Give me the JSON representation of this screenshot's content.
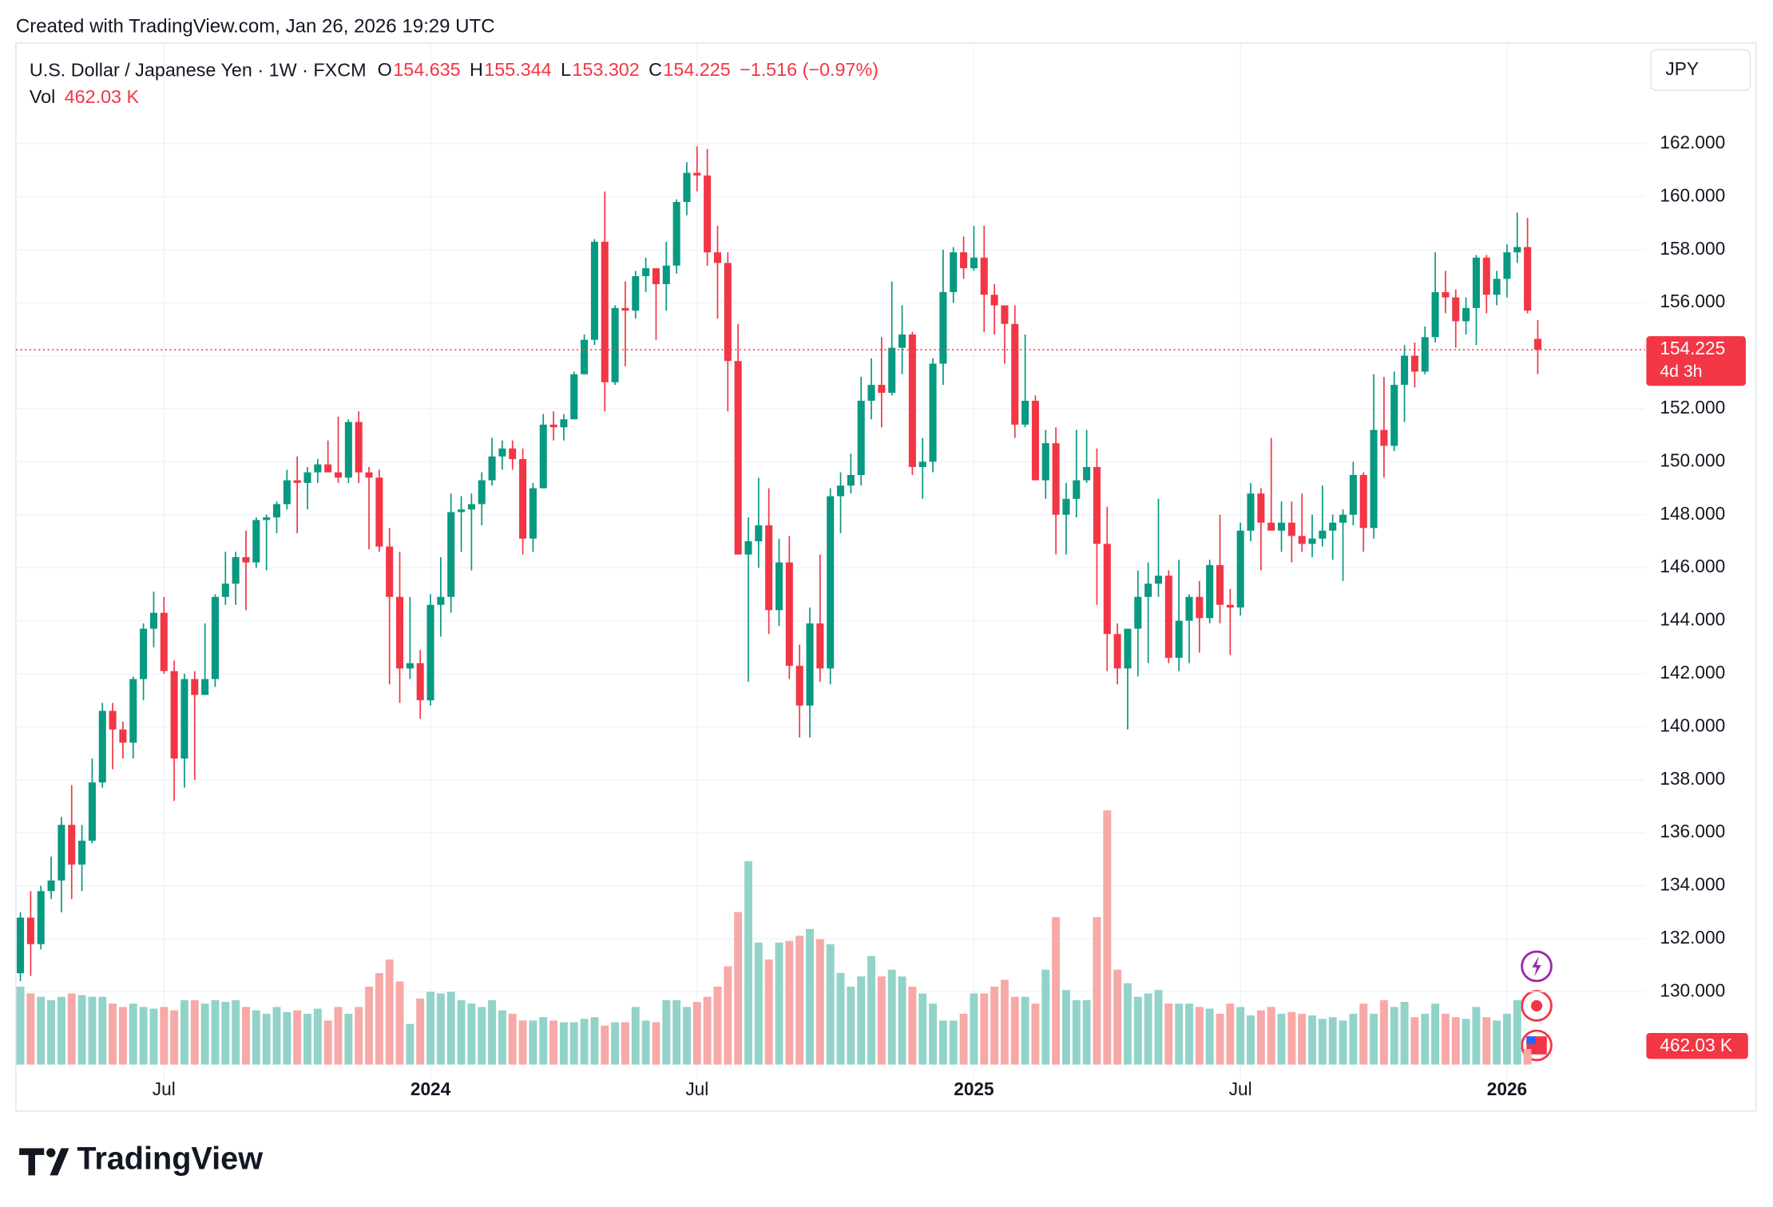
{
  "watermark": "Created with TradingView.com, Jan 26, 2026 19:29 UTC",
  "brand": "TradingView",
  "chart_data": {
    "type": "candlestick",
    "title": "U.S. Dollar / Japanese Yen · 1W · FXCM",
    "legend_labels": {
      "open": "O",
      "high": "H",
      "low": "L",
      "close": "C",
      "volume": "Vol"
    },
    "change_label": "−1.516 (−0.97%)",
    "currency": "JPY",
    "countdown": "4d 3h",
    "last_volume_label": "462.03 K",
    "up_color": "#089981",
    "down_color": "#f23645",
    "up_volume_color": "#92d3c9",
    "down_volume_color": "#f7a9a7",
    "grid": true,
    "ylim": [
      126.7,
      165.8
    ],
    "yticks": [
      {
        "value": 130,
        "label": "130.000"
      },
      {
        "value": 132,
        "label": "132.000"
      },
      {
        "value": 134,
        "label": "134.000"
      },
      {
        "value": 136,
        "label": "136.000"
      },
      {
        "value": 138,
        "label": "138.000"
      },
      {
        "value": 140,
        "label": "140.000"
      },
      {
        "value": 142,
        "label": "142.000"
      },
      {
        "value": 144,
        "label": "144.000"
      },
      {
        "value": 146,
        "label": "146.000"
      },
      {
        "value": 148,
        "label": "148.000"
      },
      {
        "value": 150,
        "label": "150.000"
      },
      {
        "value": 152,
        "label": "152.000"
      },
      {
        "value": 154,
        "label": "154.000"
      },
      {
        "value": 156,
        "label": "156.000"
      },
      {
        "value": 158,
        "label": "158.000"
      },
      {
        "value": 160,
        "label": "160.000"
      },
      {
        "value": 162,
        "label": "162.000"
      }
    ],
    "xticks": [
      {
        "value": 14,
        "label": "Jul"
      },
      {
        "value": 40,
        "label": "2024"
      },
      {
        "value": 66,
        "label": "Jul"
      },
      {
        "value": 93,
        "label": "2025"
      },
      {
        "value": 119,
        "label": "Jul"
      },
      {
        "value": 145,
        "label": "2026"
      }
    ],
    "ohlc": [
      [
        130.7,
        133.0,
        130.4,
        132.8
      ],
      [
        132.8,
        133.8,
        130.6,
        131.8
      ],
      [
        131.8,
        134.0,
        131.6,
        133.8
      ],
      [
        133.8,
        135.1,
        133.5,
        134.2
      ],
      [
        134.2,
        136.6,
        133.0,
        136.3
      ],
      [
        136.3,
        137.8,
        133.5,
        134.8
      ],
      [
        134.8,
        136.3,
        133.8,
        135.7
      ],
      [
        135.7,
        138.8,
        135.6,
        137.9
      ],
      [
        137.9,
        140.9,
        137.7,
        140.6
      ],
      [
        140.6,
        140.9,
        138.4,
        139.9
      ],
      [
        139.9,
        140.2,
        138.8,
        139.4
      ],
      [
        139.4,
        141.9,
        138.8,
        141.8
      ],
      [
        141.8,
        143.9,
        141.0,
        143.7
      ],
      [
        143.7,
        145.1,
        143.0,
        144.3
      ],
      [
        144.3,
        144.9,
        142.0,
        142.1
      ],
      [
        142.1,
        142.5,
        137.2,
        138.8
      ],
      [
        138.8,
        142.0,
        137.7,
        141.8
      ],
      [
        141.8,
        142.1,
        138.0,
        141.2
      ],
      [
        141.2,
        143.9,
        141.2,
        141.8
      ],
      [
        141.8,
        145.0,
        141.5,
        144.9
      ],
      [
        144.9,
        146.6,
        144.6,
        145.4
      ],
      [
        145.4,
        146.6,
        144.6,
        146.4
      ],
      [
        146.4,
        147.4,
        144.4,
        146.2
      ],
      [
        146.2,
        147.9,
        146.0,
        147.8
      ],
      [
        147.8,
        148.0,
        145.9,
        147.9
      ],
      [
        147.9,
        148.5,
        147.3,
        148.4
      ],
      [
        148.4,
        149.7,
        148.2,
        149.3
      ],
      [
        149.3,
        150.2,
        147.3,
        149.2
      ],
      [
        149.2,
        149.8,
        148.2,
        149.6
      ],
      [
        149.6,
        150.1,
        149.2,
        149.9
      ],
      [
        149.9,
        150.8,
        149.6,
        149.6
      ],
      [
        149.6,
        151.7,
        149.2,
        149.4
      ],
      [
        149.4,
        151.6,
        149.2,
        151.5
      ],
      [
        151.5,
        151.9,
        149.2,
        149.6
      ],
      [
        149.6,
        149.8,
        146.7,
        149.4
      ],
      [
        149.4,
        149.7,
        146.6,
        146.8
      ],
      [
        146.8,
        147.5,
        141.6,
        144.9
      ],
      [
        144.9,
        146.6,
        140.9,
        142.2
      ],
      [
        142.2,
        144.9,
        141.8,
        142.4
      ],
      [
        142.4,
        142.9,
        140.3,
        141.0
      ],
      [
        141.0,
        145.0,
        140.8,
        144.6
      ],
      [
        144.6,
        146.4,
        143.4,
        144.9
      ],
      [
        144.9,
        148.8,
        144.3,
        148.1
      ],
      [
        148.1,
        148.7,
        146.6,
        148.2
      ],
      [
        148.2,
        148.8,
        145.9,
        148.4
      ],
      [
        148.4,
        149.6,
        147.6,
        149.3
      ],
      [
        149.3,
        150.9,
        149.1,
        150.2
      ],
      [
        150.2,
        150.8,
        149.7,
        150.5
      ],
      [
        150.5,
        150.8,
        149.7,
        150.1
      ],
      [
        150.1,
        150.5,
        146.5,
        147.1
      ],
      [
        147.1,
        149.2,
        146.6,
        149.0
      ],
      [
        149.0,
        151.8,
        149.0,
        151.4
      ],
      [
        151.4,
        151.9,
        150.8,
        151.3
      ],
      [
        151.3,
        151.8,
        150.8,
        151.6
      ],
      [
        151.6,
        153.4,
        151.6,
        153.3
      ],
      [
        153.3,
        154.8,
        153.3,
        154.6
      ],
      [
        154.6,
        158.4,
        154.4,
        158.3
      ],
      [
        158.3,
        160.2,
        151.9,
        153.0
      ],
      [
        153.0,
        155.9,
        152.9,
        155.8
      ],
      [
        155.8,
        156.8,
        153.6,
        155.7
      ],
      [
        155.7,
        157.2,
        155.4,
        157.0
      ],
      [
        157.0,
        157.7,
        156.4,
        157.3
      ],
      [
        157.3,
        157.3,
        154.6,
        156.7
      ],
      [
        156.7,
        158.3,
        155.7,
        157.4
      ],
      [
        157.4,
        159.9,
        157.1,
        159.8
      ],
      [
        159.8,
        161.3,
        159.3,
        160.9
      ],
      [
        160.9,
        161.9,
        160.2,
        160.8
      ],
      [
        160.8,
        161.8,
        157.4,
        157.9
      ],
      [
        157.9,
        158.9,
        155.4,
        157.5
      ],
      [
        157.5,
        157.9,
        151.9,
        153.8
      ],
      [
        153.8,
        155.2,
        146.5,
        146.5
      ],
      [
        146.5,
        147.9,
        141.7,
        147.0
      ],
      [
        147.0,
        149.4,
        146.0,
        147.6
      ],
      [
        147.6,
        149.0,
        143.5,
        144.4
      ],
      [
        144.4,
        147.1,
        143.8,
        146.2
      ],
      [
        146.2,
        147.2,
        141.8,
        142.3
      ],
      [
        142.3,
        143.1,
        139.6,
        140.8
      ],
      [
        140.8,
        144.5,
        139.6,
        143.9
      ],
      [
        143.9,
        146.5,
        141.7,
        142.2
      ],
      [
        142.2,
        149.0,
        141.6,
        148.7
      ],
      [
        148.7,
        149.6,
        147.3,
        149.1
      ],
      [
        149.1,
        150.3,
        148.8,
        149.5
      ],
      [
        149.5,
        153.2,
        149.1,
        152.3
      ],
      [
        152.3,
        153.9,
        151.6,
        152.9
      ],
      [
        152.9,
        154.7,
        151.3,
        152.6
      ],
      [
        152.6,
        156.8,
        152.5,
        154.3
      ],
      [
        154.3,
        155.9,
        153.3,
        154.8
      ],
      [
        154.8,
        154.9,
        149.5,
        149.8
      ],
      [
        149.8,
        150.9,
        148.6,
        150.0
      ],
      [
        150.0,
        153.9,
        149.6,
        153.7
      ],
      [
        153.7,
        158.0,
        152.9,
        156.4
      ],
      [
        156.4,
        158.1,
        156.0,
        157.9
      ],
      [
        157.9,
        158.5,
        156.9,
        157.3
      ],
      [
        157.3,
        158.9,
        157.2,
        157.7
      ],
      [
        157.7,
        158.9,
        154.9,
        156.3
      ],
      [
        156.3,
        156.7,
        154.8,
        155.9
      ],
      [
        155.9,
        155.9,
        153.7,
        155.2
      ],
      [
        155.2,
        155.9,
        150.9,
        151.4
      ],
      [
        151.4,
        154.8,
        151.3,
        152.3
      ],
      [
        152.3,
        152.5,
        149.3,
        149.3
      ],
      [
        149.3,
        151.2,
        148.6,
        150.7
      ],
      [
        150.7,
        151.3,
        146.5,
        148.0
      ],
      [
        148.0,
        149.2,
        146.5,
        148.6
      ],
      [
        148.6,
        151.2,
        147.9,
        149.3
      ],
      [
        149.3,
        151.2,
        149.2,
        149.8
      ],
      [
        149.8,
        150.5,
        144.6,
        146.9
      ],
      [
        146.9,
        148.3,
        142.1,
        143.5
      ],
      [
        143.5,
        143.9,
        141.6,
        142.2
      ],
      [
        142.2,
        143.7,
        139.9,
        143.7
      ],
      [
        143.7,
        145.9,
        141.9,
        144.9
      ],
      [
        144.9,
        146.2,
        142.4,
        145.4
      ],
      [
        145.4,
        148.6,
        144.9,
        145.7
      ],
      [
        145.7,
        145.9,
        142.4,
        142.6
      ],
      [
        142.6,
        146.3,
        142.1,
        144.0
      ],
      [
        144.0,
        145.0,
        142.4,
        144.9
      ],
      [
        144.9,
        145.5,
        142.8,
        144.1
      ],
      [
        144.1,
        146.3,
        143.9,
        146.1
      ],
      [
        146.1,
        148.0,
        143.9,
        144.6
      ],
      [
        144.6,
        145.2,
        142.7,
        144.5
      ],
      [
        144.5,
        147.7,
        144.2,
        147.4
      ],
      [
        147.4,
        149.2,
        147.0,
        148.8
      ],
      [
        148.8,
        149.0,
        145.9,
        147.7
      ],
      [
        147.7,
        150.9,
        147.6,
        147.4
      ],
      [
        147.4,
        148.5,
        146.6,
        147.7
      ],
      [
        147.7,
        148.5,
        146.2,
        147.2
      ],
      [
        147.2,
        148.8,
        146.6,
        146.9
      ],
      [
        146.9,
        148.0,
        146.4,
        147.1
      ],
      [
        147.1,
        149.1,
        146.8,
        147.4
      ],
      [
        147.4,
        148.0,
        146.3,
        147.7
      ],
      [
        147.7,
        148.2,
        145.5,
        148.0
      ],
      [
        148.0,
        150.0,
        147.6,
        149.5
      ],
      [
        149.5,
        149.6,
        146.6,
        147.5
      ],
      [
        147.5,
        153.3,
        147.1,
        151.2
      ],
      [
        151.2,
        153.2,
        149.4,
        150.6
      ],
      [
        150.6,
        153.4,
        150.4,
        152.9
      ],
      [
        152.9,
        154.4,
        151.5,
        154.0
      ],
      [
        154.0,
        154.5,
        152.8,
        153.4
      ],
      [
        153.4,
        155.1,
        153.3,
        154.7
      ],
      [
        154.7,
        157.9,
        154.5,
        156.4
      ],
      [
        156.4,
        157.2,
        155.6,
        156.2
      ],
      [
        156.2,
        156.5,
        154.3,
        155.3
      ],
      [
        155.3,
        156.2,
        154.8,
        155.8
      ],
      [
        155.8,
        157.8,
        154.4,
        157.7
      ],
      [
        157.7,
        157.8,
        155.6,
        156.3
      ],
      [
        156.3,
        157.2,
        155.9,
        156.9
      ],
      [
        156.9,
        158.2,
        156.2,
        157.9
      ],
      [
        157.9,
        159.4,
        157.5,
        158.1
      ],
      [
        158.1,
        159.2,
        155.6,
        155.7
      ],
      [
        154.635,
        155.344,
        153.302,
        154.225
      ]
    ],
    "volume": [
      2300,
      2100,
      2000,
      1900,
      2000,
      2100,
      2050,
      2000,
      2000,
      1800,
      1700,
      1800,
      1700,
      1650,
      1700,
      1600,
      1900,
      1900,
      1800,
      1900,
      1850,
      1900,
      1700,
      1600,
      1500,
      1700,
      1550,
      1600,
      1500,
      1650,
      1300,
      1700,
      1500,
      1700,
      2300,
      2700,
      3100,
      2450,
      1200,
      1950,
      2150,
      2100,
      2150,
      1900,
      1800,
      1700,
      1900,
      1600,
      1500,
      1300,
      1300,
      1400,
      1300,
      1250,
      1250,
      1350,
      1400,
      1150,
      1250,
      1250,
      1700,
      1300,
      1250,
      1900,
      1900,
      1700,
      1850,
      2000,
      2300,
      2900,
      4500,
      6000,
      3600,
      3100,
      3600,
      3650,
      3800,
      4000,
      3700,
      3550,
      2700,
      2300,
      2600,
      3200,
      2600,
      2800,
      2600,
      2300,
      2100,
      1800,
      1300,
      1300,
      1500,
      2100,
      2100,
      2300,
      2500,
      2000,
      2000,
      1800,
      2800,
      4350,
      2200,
      1900,
      1900,
      4350,
      7500,
      2800,
      2400,
      2000,
      2100,
      2200,
      1800,
      1800,
      1800,
      1700,
      1650,
      1500,
      1800,
      1700,
      1450,
      1600,
      1700,
      1500,
      1550,
      1500,
      1450,
      1350,
      1400,
      1300,
      1500,
      1800,
      1500,
      1900,
      1700,
      1850,
      1400,
      1500,
      1800,
      1500,
      1400,
      1350,
      1700,
      1400,
      1300,
      1500,
      1900,
      462.03
    ]
  }
}
